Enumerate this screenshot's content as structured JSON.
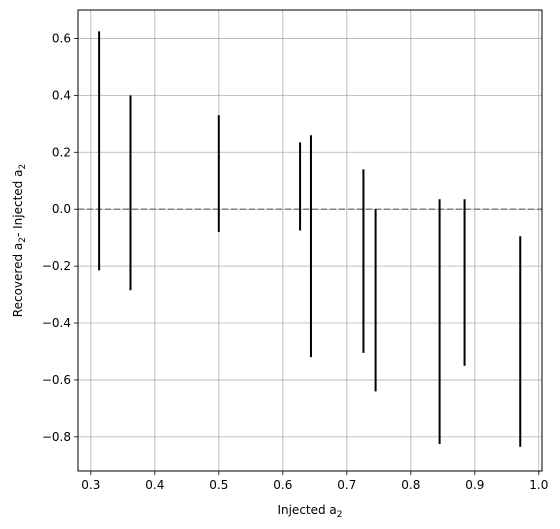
{
  "chart_data": {
    "type": "errorbar",
    "xlabel": "Injected a",
    "xlabel_sub": "2",
    "ylabel_parts": [
      "Recovered a",
      "2",
      "- Injected a",
      "2"
    ],
    "xlim": [
      0.28,
      1.005
    ],
    "ylim": [
      -0.92,
      0.7
    ],
    "xticks": [
      0.3,
      0.4,
      0.5,
      0.6,
      0.7,
      0.8,
      0.9,
      1.0
    ],
    "xtick_labels": [
      "0.3",
      "0.4",
      "0.5",
      "0.6",
      "0.7",
      "0.8",
      "0.9",
      "1.0"
    ],
    "yticks": [
      -0.8,
      -0.6,
      -0.4,
      -0.2,
      0.0,
      0.2,
      0.4,
      0.6
    ],
    "ytick_labels": [
      "−0.8",
      "−0.6",
      "−0.4",
      "−0.2",
      "0.0",
      "0.2",
      "0.4",
      "0.6"
    ],
    "grid": true,
    "reference_line": {
      "y": 0.0,
      "style": "dashed",
      "color": "#808080"
    },
    "bar_color": "#000000",
    "bars": [
      {
        "x": 0.313,
        "low": -0.215,
        "high": 0.625
      },
      {
        "x": 0.362,
        "low": -0.285,
        "high": 0.4
      },
      {
        "x": 0.5,
        "low": -0.08,
        "high": 0.33
      },
      {
        "x": 0.627,
        "low": -0.075,
        "high": 0.235
      },
      {
        "x": 0.644,
        "low": -0.52,
        "high": 0.26
      },
      {
        "x": 0.726,
        "low": -0.505,
        "high": 0.14
      },
      {
        "x": 0.745,
        "low": -0.64,
        "high": 0.0
      },
      {
        "x": 0.845,
        "low": -0.825,
        "high": 0.035
      },
      {
        "x": 0.884,
        "low": -0.55,
        "high": 0.035
      },
      {
        "x": 0.971,
        "low": -0.835,
        "high": -0.095
      }
    ]
  }
}
